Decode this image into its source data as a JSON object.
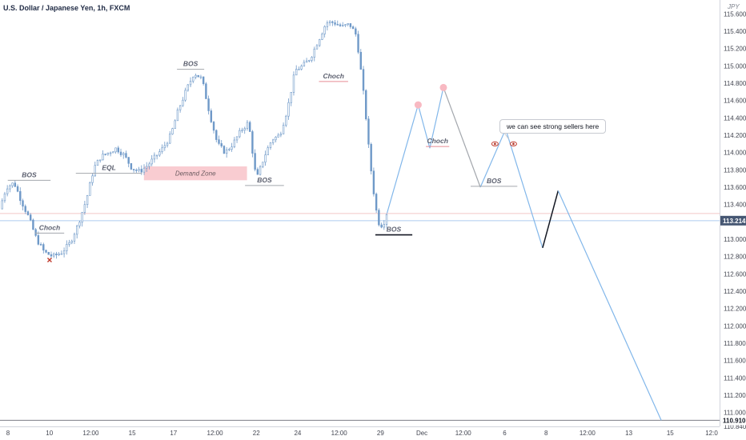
{
  "header": {
    "title": "U.S. Dollar / Japanese Yen, 1h, FXCM",
    "currency": "JPY"
  },
  "colors": {
    "candle": "#6f99c8",
    "projection": "#82b7ea",
    "grey_leg": "#a3a7ad",
    "impulse": "#131722",
    "demand": "#f9ccd1",
    "marker_dot": "#f8b9c2",
    "price_line": "#adcbef",
    "price_label_bg": "#465773"
  },
  "chart_data": {
    "type": "line",
    "title": "U.S. Dollar / Japanese Yen, 1h, FXCM",
    "y_axis": {
      "range": [
        110.84,
        115.76
      ],
      "ticks": [
        "115.600",
        "115.400",
        "115.200",
        "115.000",
        "114.800",
        "114.600",
        "114.400",
        "114.200",
        "114.000",
        "113.800",
        "113.600",
        "113.400",
        "113.200",
        "113.000",
        "112.800",
        "112.600",
        "112.400",
        "112.200",
        "112.000",
        "111.800",
        "111.600",
        "111.400",
        "111.200",
        "111.000",
        "110.840"
      ],
      "current_price": "113.214",
      "target_price": "110.910"
    },
    "x_axis": {
      "ticks": [
        "8",
        "10",
        "12:00",
        "15",
        "17",
        "12:00",
        "22",
        "24",
        "12:00",
        "29",
        "Dec",
        "12:00",
        "6",
        "8",
        "12:00",
        "13",
        "15",
        "12:0"
      ]
    },
    "price_history": {
      "x": [
        0.0,
        0.35,
        0.75,
        1.1,
        1.5,
        1.9,
        2.3,
        2.75,
        3.2,
        3.6,
        4.0,
        4.45,
        4.85,
        5.2,
        5.6,
        6.0,
        6.4,
        6.8,
        7.2,
        7.6,
        8.0,
        8.4,
        8.8,
        9.2,
        9.6,
        10.0,
        10.4,
        10.8,
        11.2,
        11.6,
        12.0,
        12.4,
        12.8,
        13.2,
        13.6,
        14.0,
        14.4,
        14.8,
        15.2,
        15.6,
        16.0,
        16.4,
        16.8,
        17.2,
        17.6,
        18.0,
        18.35,
        18.6,
        18.8,
        19.0,
        19.2,
        19.45,
        19.7,
        19.9
      ],
      "y": [
        113.35,
        113.6,
        113.65,
        113.45,
        113.25,
        113.0,
        112.85,
        112.8,
        112.85,
        112.95,
        113.15,
        113.45,
        113.82,
        113.95,
        114.0,
        114.05,
        113.97,
        113.82,
        113.78,
        113.85,
        113.95,
        114.05,
        114.2,
        114.5,
        114.72,
        114.92,
        114.85,
        114.45,
        114.1,
        114.0,
        114.1,
        114.25,
        114.35,
        113.68,
        113.95,
        114.15,
        114.2,
        114.5,
        114.95,
        115.0,
        115.1,
        115.3,
        115.5,
        115.5,
        115.45,
        115.48,
        115.35,
        114.9,
        114.5,
        114.0,
        113.6,
        113.2,
        113.15,
        113.3
      ]
    },
    "projection": {
      "blue_1": {
        "x": [
          19.9,
          21.5,
          22.1,
          22.8
        ],
        "y": [
          113.3,
          114.55,
          114.05,
          114.75
        ]
      },
      "grey": {
        "x": [
          22.8,
          24.7
        ],
        "y": [
          114.75,
          113.6
        ]
      },
      "blue_2": {
        "x": [
          24.7,
          26.0,
          27.9
        ],
        "y": [
          113.6,
          114.27,
          112.9
        ]
      },
      "black": {
        "x": [
          27.9,
          28.7
        ],
        "y": [
          112.9,
          113.56
        ]
      },
      "blue_3": {
        "x": [
          28.7,
          34.0
        ],
        "y": [
          113.56,
          110.91
        ]
      },
      "markers": [
        {
          "x": 21.5,
          "y": 114.55
        },
        {
          "x": 22.8,
          "y": 114.75
        }
      ]
    },
    "levels": [
      {
        "label": "BOS",
        "x": [
          0.4,
          2.6
        ],
        "y": 113.68,
        "underline": "grey"
      },
      {
        "label": "Choch",
        "x": [
          1.8,
          3.3
        ],
        "y": 113.07,
        "underline": "grey"
      },
      {
        "label": "EQL",
        "x": [
          3.9,
          7.3
        ],
        "y": 113.76,
        "underline": "grey"
      },
      {
        "label": "BOS",
        "x": [
          9.1,
          10.5
        ],
        "y": 114.96,
        "underline": "grey"
      },
      {
        "label": "BOS",
        "x": [
          12.6,
          14.6
        ],
        "y": 113.62,
        "underline": "grey"
      },
      {
        "label": "Choch",
        "x": [
          16.4,
          17.9
        ],
        "y": 114.82,
        "underline": "red"
      },
      {
        "label": "BOS",
        "x": [
          19.3,
          21.2
        ],
        "y": 113.05,
        "underline": "black"
      },
      {
        "label": "Choch",
        "x": [
          21.9,
          23.1
        ],
        "y": 114.07,
        "underline": "red"
      },
      {
        "label": "BOS",
        "x": [
          24.2,
          26.6
        ],
        "y": 113.61,
        "underline": "grey"
      }
    ],
    "zones": [
      {
        "label": "Demand Zone",
        "x": [
          7.4,
          12.7
        ],
        "y": [
          113.68,
          113.84
        ]
      }
    ],
    "annotations": [
      {
        "text": "we can see strong sellers here"
      }
    ],
    "sell_marker": {
      "x": 2.55,
      "y": 112.76
    },
    "eye_icons": [
      {
        "x": 25.45,
        "y": 114.1
      },
      {
        "x": 26.4,
        "y": 114.1
      }
    ],
    "x_range": [
      0,
      37
    ]
  }
}
